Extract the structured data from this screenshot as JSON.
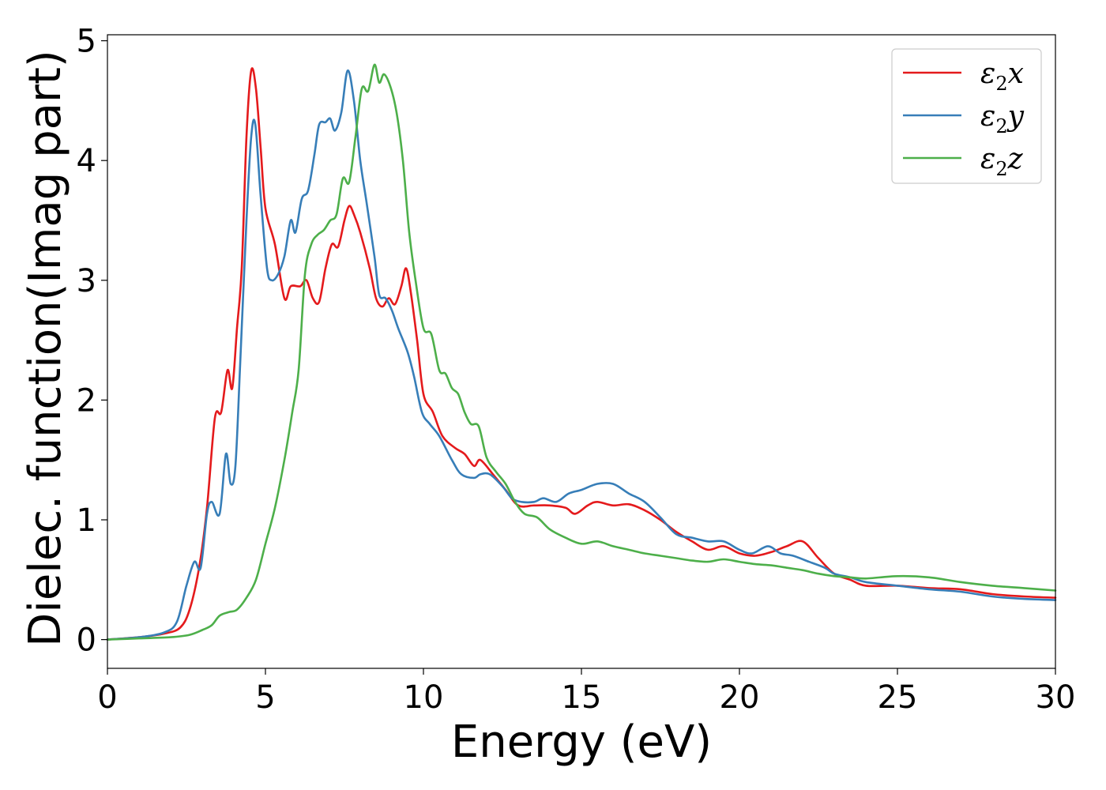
{
  "chart_data": {
    "type": "line",
    "title": "",
    "xlabel": "Energy (eV)",
    "ylabel": "Dielec. function(Imag part)",
    "xlim": [
      0,
      30
    ],
    "ylim": [
      -0.24,
      5.05
    ],
    "xticks": [
      0,
      5,
      10,
      15,
      20,
      25,
      30
    ],
    "yticks": [
      0,
      1,
      2,
      3,
      4,
      5
    ],
    "grid": false,
    "legend_position": "top-right",
    "series": [
      {
        "name": "ε₂x",
        "legend": {
          "main": "ε",
          "sub": "2",
          "var": "x"
        },
        "color": "#e41a1c",
        "points": [
          [
            0,
            0
          ],
          [
            1,
            0.02
          ],
          [
            1.8,
            0.05
          ],
          [
            2.3,
            0.1
          ],
          [
            2.6,
            0.25
          ],
          [
            2.9,
            0.6
          ],
          [
            3.15,
            1.1
          ],
          [
            3.4,
            1.85
          ],
          [
            3.6,
            1.9
          ],
          [
            3.8,
            2.25
          ],
          [
            3.95,
            2.1
          ],
          [
            4.1,
            2.6
          ],
          [
            4.25,
            3.1
          ],
          [
            4.4,
            4.2
          ],
          [
            4.55,
            4.75
          ],
          [
            4.7,
            4.6
          ],
          [
            4.85,
            4.1
          ],
          [
            5.0,
            3.6
          ],
          [
            5.3,
            3.3
          ],
          [
            5.6,
            2.85
          ],
          [
            5.8,
            2.95
          ],
          [
            6.1,
            2.95
          ],
          [
            6.3,
            3.0
          ],
          [
            6.5,
            2.85
          ],
          [
            6.7,
            2.82
          ],
          [
            6.9,
            3.1
          ],
          [
            7.1,
            3.3
          ],
          [
            7.3,
            3.28
          ],
          [
            7.5,
            3.5
          ],
          [
            7.65,
            3.62
          ],
          [
            7.8,
            3.55
          ],
          [
            8.0,
            3.4
          ],
          [
            8.3,
            3.1
          ],
          [
            8.5,
            2.85
          ],
          [
            8.7,
            2.78
          ],
          [
            8.9,
            2.85
          ],
          [
            9.1,
            2.8
          ],
          [
            9.3,
            2.95
          ],
          [
            9.45,
            3.1
          ],
          [
            9.6,
            2.9
          ],
          [
            9.8,
            2.5
          ],
          [
            10.0,
            2.05
          ],
          [
            10.3,
            1.9
          ],
          [
            10.6,
            1.7
          ],
          [
            11.0,
            1.6
          ],
          [
            11.3,
            1.55
          ],
          [
            11.6,
            1.45
          ],
          [
            11.8,
            1.5
          ],
          [
            12.2,
            1.38
          ],
          [
            12.6,
            1.25
          ],
          [
            13.0,
            1.12
          ],
          [
            13.5,
            1.12
          ],
          [
            14.0,
            1.12
          ],
          [
            14.5,
            1.1
          ],
          [
            14.8,
            1.05
          ],
          [
            15.2,
            1.12
          ],
          [
            15.5,
            1.15
          ],
          [
            16.0,
            1.12
          ],
          [
            16.5,
            1.13
          ],
          [
            17.0,
            1.08
          ],
          [
            17.5,
            1.0
          ],
          [
            18.0,
            0.9
          ],
          [
            18.5,
            0.82
          ],
          [
            19.0,
            0.75
          ],
          [
            19.5,
            0.78
          ],
          [
            20.0,
            0.72
          ],
          [
            20.5,
            0.7
          ],
          [
            21.0,
            0.73
          ],
          [
            21.5,
            0.78
          ],
          [
            22.0,
            0.82
          ],
          [
            22.5,
            0.68
          ],
          [
            23.0,
            0.55
          ],
          [
            23.5,
            0.5
          ],
          [
            24.0,
            0.45
          ],
          [
            25.0,
            0.45
          ],
          [
            26.0,
            0.43
          ],
          [
            27.0,
            0.42
          ],
          [
            28.0,
            0.38
          ],
          [
            29.0,
            0.36
          ],
          [
            30.0,
            0.35
          ]
        ]
      },
      {
        "name": "ε₂y",
        "legend": {
          "main": "ε",
          "sub": "2",
          "var": "y"
        },
        "color": "#377eb8",
        "points": [
          [
            0,
            0
          ],
          [
            1,
            0.02
          ],
          [
            1.8,
            0.06
          ],
          [
            2.2,
            0.15
          ],
          [
            2.5,
            0.45
          ],
          [
            2.75,
            0.65
          ],
          [
            2.95,
            0.6
          ],
          [
            3.15,
            1.05
          ],
          [
            3.3,
            1.15
          ],
          [
            3.55,
            1.05
          ],
          [
            3.75,
            1.55
          ],
          [
            3.9,
            1.3
          ],
          [
            4.05,
            1.45
          ],
          [
            4.2,
            2.3
          ],
          [
            4.4,
            3.5
          ],
          [
            4.55,
            4.2
          ],
          [
            4.68,
            4.3
          ],
          [
            4.85,
            3.7
          ],
          [
            5.05,
            3.1
          ],
          [
            5.2,
            3.0
          ],
          [
            5.4,
            3.05
          ],
          [
            5.6,
            3.2
          ],
          [
            5.8,
            3.5
          ],
          [
            5.95,
            3.4
          ],
          [
            6.15,
            3.68
          ],
          [
            6.35,
            3.75
          ],
          [
            6.55,
            4.05
          ],
          [
            6.7,
            4.3
          ],
          [
            6.9,
            4.32
          ],
          [
            7.05,
            4.35
          ],
          [
            7.2,
            4.25
          ],
          [
            7.4,
            4.4
          ],
          [
            7.6,
            4.75
          ],
          [
            7.8,
            4.5
          ],
          [
            8.0,
            4.0
          ],
          [
            8.2,
            3.65
          ],
          [
            8.45,
            3.2
          ],
          [
            8.6,
            2.88
          ],
          [
            8.8,
            2.85
          ],
          [
            9.0,
            2.75
          ],
          [
            9.2,
            2.6
          ],
          [
            9.5,
            2.4
          ],
          [
            9.7,
            2.2
          ],
          [
            9.95,
            1.9
          ],
          [
            10.2,
            1.8
          ],
          [
            10.5,
            1.7
          ],
          [
            10.9,
            1.5
          ],
          [
            11.2,
            1.38
          ],
          [
            11.6,
            1.35
          ],
          [
            11.8,
            1.38
          ],
          [
            12.1,
            1.38
          ],
          [
            12.5,
            1.28
          ],
          [
            12.8,
            1.18
          ],
          [
            13.1,
            1.15
          ],
          [
            13.5,
            1.15
          ],
          [
            13.8,
            1.18
          ],
          [
            14.2,
            1.15
          ],
          [
            14.6,
            1.22
          ],
          [
            15.0,
            1.25
          ],
          [
            15.5,
            1.3
          ],
          [
            16.0,
            1.3
          ],
          [
            16.5,
            1.22
          ],
          [
            17.0,
            1.15
          ],
          [
            17.5,
            1.02
          ],
          [
            18.0,
            0.88
          ],
          [
            18.5,
            0.85
          ],
          [
            19.0,
            0.82
          ],
          [
            19.5,
            0.82
          ],
          [
            20.0,
            0.75
          ],
          [
            20.4,
            0.72
          ],
          [
            20.9,
            0.78
          ],
          [
            21.3,
            0.72
          ],
          [
            21.7,
            0.7
          ],
          [
            22.2,
            0.65
          ],
          [
            22.7,
            0.6
          ],
          [
            23.0,
            0.55
          ],
          [
            23.5,
            0.52
          ],
          [
            24.0,
            0.48
          ],
          [
            25.0,
            0.45
          ],
          [
            26.0,
            0.42
          ],
          [
            27.0,
            0.4
          ],
          [
            28.0,
            0.36
          ],
          [
            29.0,
            0.34
          ],
          [
            30.0,
            0.33
          ]
        ]
      },
      {
        "name": "ε₂z",
        "legend": {
          "main": "ε",
          "sub": "2",
          "var": "z"
        },
        "color": "#4daf4a",
        "points": [
          [
            0,
            0
          ],
          [
            1,
            0.01
          ],
          [
            2,
            0.02
          ],
          [
            2.6,
            0.04
          ],
          [
            3.0,
            0.08
          ],
          [
            3.3,
            0.12
          ],
          [
            3.55,
            0.2
          ],
          [
            3.85,
            0.23
          ],
          [
            4.1,
            0.25
          ],
          [
            4.4,
            0.35
          ],
          [
            4.7,
            0.5
          ],
          [
            5.0,
            0.8
          ],
          [
            5.3,
            1.1
          ],
          [
            5.6,
            1.5
          ],
          [
            5.85,
            1.9
          ],
          [
            6.05,
            2.25
          ],
          [
            6.25,
            3.05
          ],
          [
            6.45,
            3.3
          ],
          [
            6.65,
            3.38
          ],
          [
            6.85,
            3.42
          ],
          [
            7.05,
            3.5
          ],
          [
            7.25,
            3.55
          ],
          [
            7.45,
            3.85
          ],
          [
            7.65,
            3.82
          ],
          [
            7.85,
            4.2
          ],
          [
            8.05,
            4.6
          ],
          [
            8.25,
            4.58
          ],
          [
            8.45,
            4.8
          ],
          [
            8.6,
            4.65
          ],
          [
            8.75,
            4.72
          ],
          [
            8.95,
            4.62
          ],
          [
            9.15,
            4.4
          ],
          [
            9.35,
            4.0
          ],
          [
            9.55,
            3.4
          ],
          [
            9.75,
            3.0
          ],
          [
            10.0,
            2.6
          ],
          [
            10.25,
            2.55
          ],
          [
            10.5,
            2.25
          ],
          [
            10.7,
            2.22
          ],
          [
            10.9,
            2.1
          ],
          [
            11.1,
            2.05
          ],
          [
            11.3,
            1.9
          ],
          [
            11.5,
            1.8
          ],
          [
            11.75,
            1.78
          ],
          [
            12.0,
            1.52
          ],
          [
            12.3,
            1.4
          ],
          [
            12.6,
            1.3
          ],
          [
            12.9,
            1.15
          ],
          [
            13.2,
            1.05
          ],
          [
            13.6,
            1.02
          ],
          [
            14.0,
            0.92
          ],
          [
            14.5,
            0.85
          ],
          [
            15.0,
            0.8
          ],
          [
            15.5,
            0.82
          ],
          [
            16.0,
            0.78
          ],
          [
            16.5,
            0.75
          ],
          [
            17.0,
            0.72
          ],
          [
            17.5,
            0.7
          ],
          [
            18.0,
            0.68
          ],
          [
            18.5,
            0.66
          ],
          [
            19.0,
            0.65
          ],
          [
            19.5,
            0.67
          ],
          [
            20.0,
            0.65
          ],
          [
            20.5,
            0.63
          ],
          [
            21.0,
            0.62
          ],
          [
            21.5,
            0.6
          ],
          [
            22.0,
            0.58
          ],
          [
            22.5,
            0.55
          ],
          [
            23.0,
            0.53
          ],
          [
            23.5,
            0.52
          ],
          [
            24.0,
            0.51
          ],
          [
            25.0,
            0.53
          ],
          [
            26.0,
            0.52
          ],
          [
            27.0,
            0.48
          ],
          [
            28.0,
            0.45
          ],
          [
            29.0,
            0.43
          ],
          [
            30.0,
            0.41
          ]
        ]
      }
    ]
  }
}
